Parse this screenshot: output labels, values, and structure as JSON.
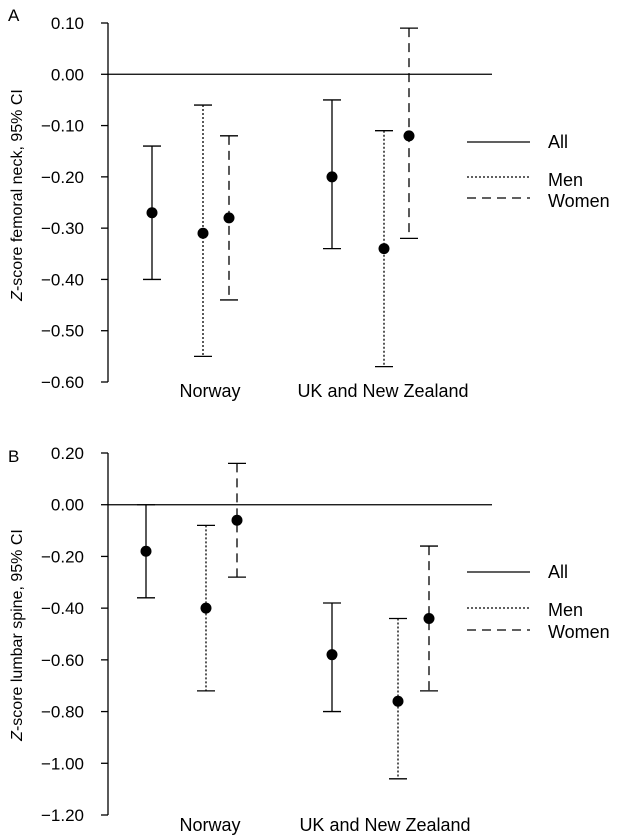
{
  "chart_data": [
    {
      "type": "errorbar",
      "panel_label": "A",
      "ylabel_italic": "Z",
      "ylabel_rest": "-score femoral neck, 95% CI",
      "ylim": [
        -0.6,
        0.1
      ],
      "yticks": [
        0.1,
        0.0,
        -0.1,
        -0.2,
        -0.3,
        -0.4,
        -0.5,
        -0.6
      ],
      "ytick_labels": [
        "0.10",
        "0.00",
        "−0.10",
        "−0.20",
        "−0.30",
        "−0.40",
        "−0.50",
        "−0.60"
      ],
      "categories": [
        "Norway",
        "UK and New Zealand"
      ],
      "legend": [
        "All",
        "Men",
        "Women"
      ],
      "series": [
        {
          "name": "All",
          "style": "solid",
          "points": [
            {
              "category": "Norway",
              "y": -0.27,
              "lower": -0.4,
              "upper": -0.14
            },
            {
              "category": "UK and New Zealand",
              "y": -0.2,
              "lower": -0.34,
              "upper": -0.05
            }
          ]
        },
        {
          "name": "Men",
          "style": "dotted",
          "points": [
            {
              "category": "Norway",
              "y": -0.31,
              "lower": -0.55,
              "upper": -0.06
            },
            {
              "category": "UK and New Zealand",
              "y": -0.34,
              "lower": -0.57,
              "upper": -0.11
            }
          ]
        },
        {
          "name": "Women",
          "style": "dashed",
          "points": [
            {
              "category": "Norway",
              "y": -0.28,
              "lower": -0.44,
              "upper": -0.12
            },
            {
              "category": "UK and New Zealand",
              "y": -0.12,
              "lower": -0.32,
              "upper": 0.09
            }
          ]
        }
      ]
    },
    {
      "type": "errorbar",
      "panel_label": "B",
      "ylabel_italic": "Z",
      "ylabel_rest": "-score lumbar spine, 95% CI",
      "ylim": [
        -1.2,
        0.2
      ],
      "yticks": [
        0.2,
        0.0,
        -0.2,
        -0.4,
        -0.6,
        -0.8,
        -1.0,
        -1.2
      ],
      "ytick_labels": [
        "0.20",
        "0.00",
        "−0.20",
        "−0.40",
        "−0.60",
        "−0.80",
        "−1.00",
        "−1.20"
      ],
      "categories": [
        "Norway",
        "UK and New Zealand"
      ],
      "legend": [
        "All",
        "Men",
        "Women"
      ],
      "series": [
        {
          "name": "All",
          "style": "solid",
          "points": [
            {
              "category": "Norway",
              "y": -0.18,
              "lower": -0.36,
              "upper": 0.0
            },
            {
              "category": "UK and New Zealand",
              "y": -0.58,
              "lower": -0.8,
              "upper": -0.38
            }
          ]
        },
        {
          "name": "Men",
          "style": "dotted",
          "points": [
            {
              "category": "Norway",
              "y": -0.4,
              "lower": -0.72,
              "upper": -0.08
            },
            {
              "category": "UK and New Zealand",
              "y": -0.76,
              "lower": -1.06,
              "upper": -0.44
            }
          ]
        },
        {
          "name": "Women",
          "style": "dashed",
          "points": [
            {
              "category": "Norway",
              "y": -0.06,
              "lower": -0.28,
              "upper": 0.16
            },
            {
              "category": "UK and New Zealand",
              "y": -0.44,
              "lower": -0.72,
              "upper": -0.16
            }
          ]
        }
      ]
    }
  ]
}
